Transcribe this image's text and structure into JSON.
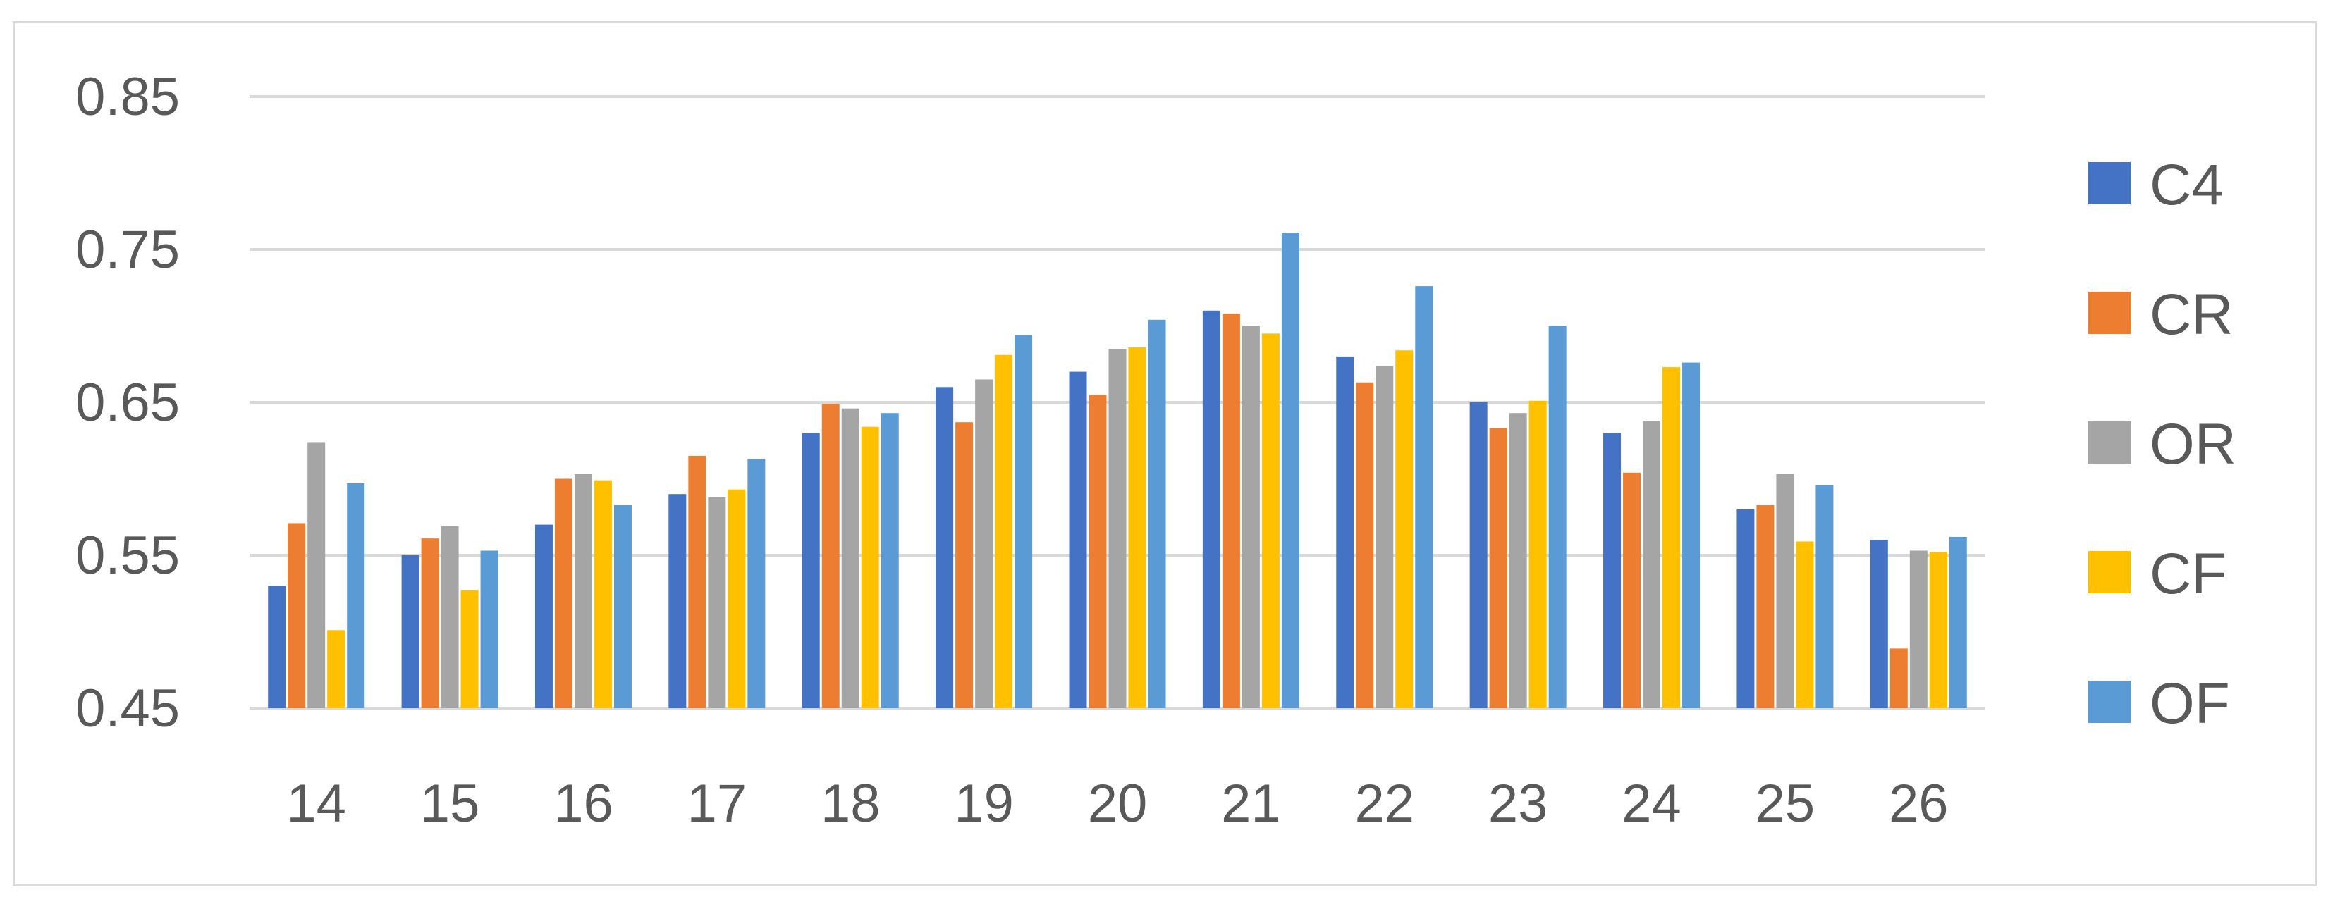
{
  "chart_data": {
    "type": "bar",
    "title": "",
    "xlabel": "",
    "ylabel": "",
    "ylim": [
      0.45,
      0.85
    ],
    "yticks": [
      0.45,
      0.55,
      0.65,
      0.75,
      0.85
    ],
    "ytick_labels": [
      "0.45",
      "0.55",
      "0.65",
      "0.75",
      "0.85"
    ],
    "grid": true,
    "legend_position": "right",
    "categories": [
      "14",
      "15",
      "16",
      "17",
      "18",
      "19",
      "20",
      "21",
      "22",
      "23",
      "24",
      "25",
      "26"
    ],
    "series": [
      {
        "name": "C4",
        "color": "#4472c4",
        "values": [
          0.53,
          0.55,
          0.57,
          0.59,
          0.63,
          0.66,
          0.67,
          0.71,
          0.68,
          0.65,
          0.63,
          0.58,
          0.56
        ]
      },
      {
        "name": "CR",
        "color": "#ed7d31",
        "values": [
          0.571,
          0.561,
          0.6,
          0.615,
          0.649,
          0.637,
          0.655,
          0.708,
          0.663,
          0.633,
          0.604,
          0.583,
          0.489
        ]
      },
      {
        "name": "OR",
        "color": "#a5a5a5",
        "values": [
          0.624,
          0.569,
          0.603,
          0.588,
          0.646,
          0.665,
          0.685,
          0.7,
          0.674,
          0.643,
          0.638,
          0.603,
          0.553
        ]
      },
      {
        "name": "CF",
        "color": "#ffc000",
        "values": [
          0.501,
          0.527,
          0.599,
          0.593,
          0.634,
          0.681,
          0.686,
          0.695,
          0.684,
          0.651,
          0.673,
          0.559,
          0.552
        ]
      },
      {
        "name": "OF",
        "color": "#5b9bd5",
        "values": [
          0.597,
          0.553,
          0.583,
          0.613,
          0.643,
          0.694,
          0.704,
          0.761,
          0.726,
          0.7,
          0.676,
          0.596,
          0.562
        ]
      }
    ]
  }
}
